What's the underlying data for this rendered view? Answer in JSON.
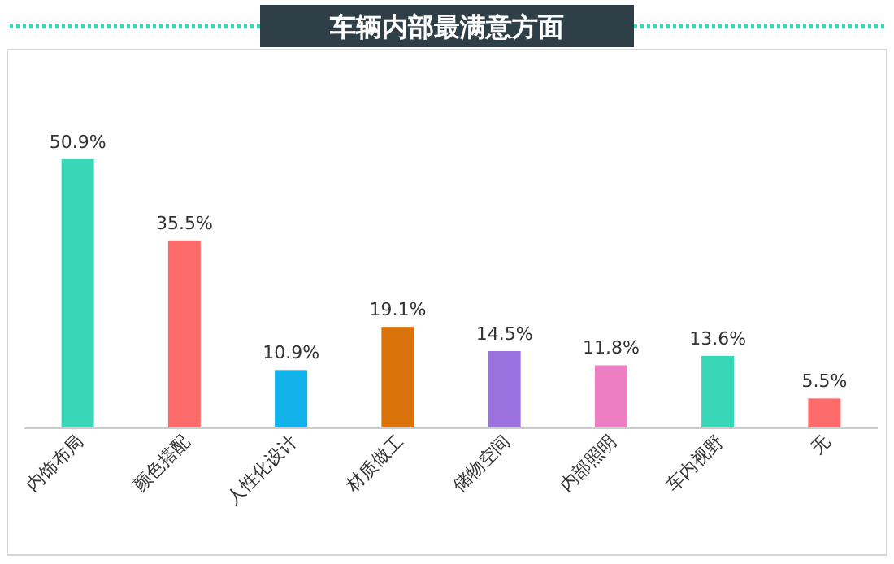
{
  "chart_data": {
    "type": "bar",
    "title": "车辆内部最满意方面",
    "categories": [
      "内饰布局",
      "颜色搭配",
      "人性化设计",
      "材质做工",
      "储物空间",
      "内部照明",
      "车内视野",
      "无"
    ],
    "values": [
      50.9,
      35.5,
      10.9,
      19.1,
      14.5,
      11.8,
      13.6,
      5.5
    ],
    "colors": [
      "#3ad6b8",
      "#fe6b6b",
      "#12b2ea",
      "#d9730a",
      "#9b72e0",
      "#ee7ec3",
      "#3ad6b8",
      "#fe6b6b"
    ],
    "value_labels": [
      "50.9%",
      "35.5%",
      "10.9%",
      "19.1%",
      "14.5%",
      "11.8%",
      "13.6%",
      "5.5%"
    ]
  }
}
